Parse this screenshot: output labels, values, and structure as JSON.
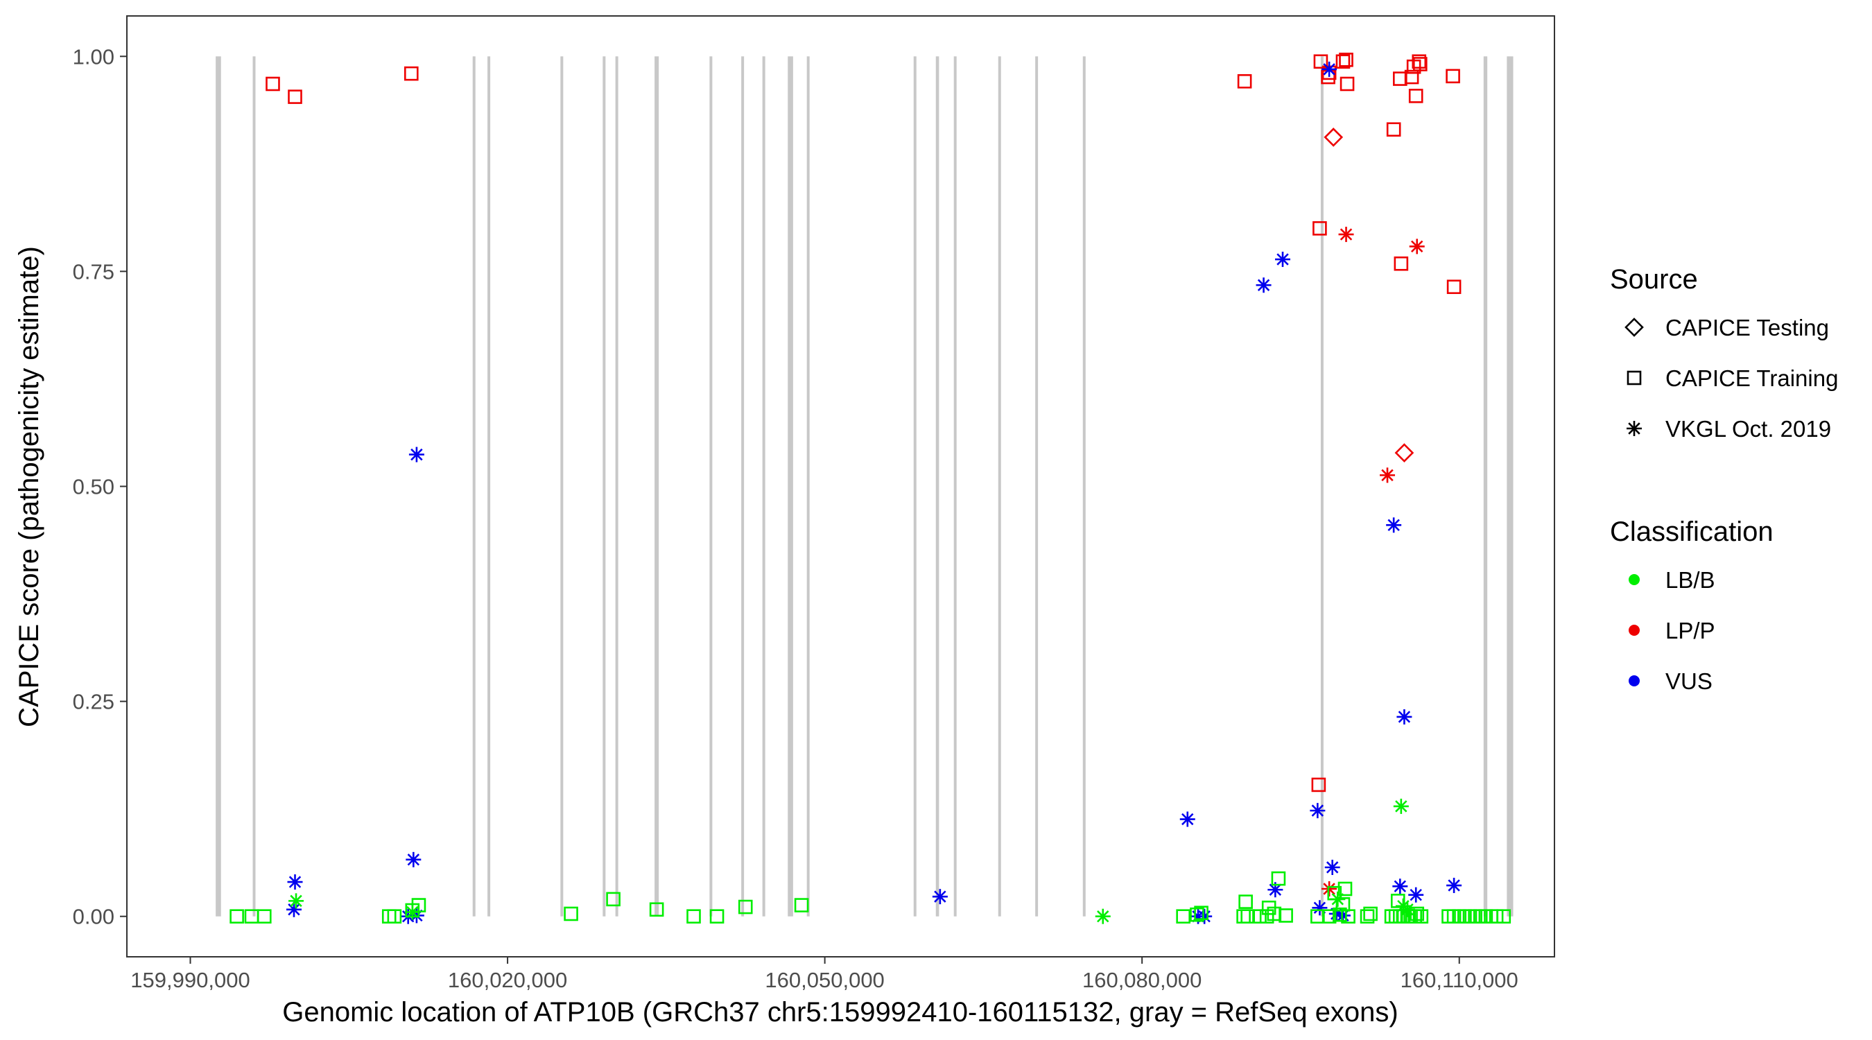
{
  "chart_data": {
    "type": "scatter",
    "title": "",
    "xlabel": "Genomic location of ATP10B (GRCh37 chr5:159992410-160115132, gray = RefSeq exons)",
    "ylabel": "CAPICE score (pathogenicity estimate)",
    "xlim": [
      159984000,
      160119000
    ],
    "ylim": [
      -0.047,
      1.047
    ],
    "x_ticks": [
      159990000,
      160020000,
      160050000,
      160080000,
      160110000
    ],
    "x_tick_labels": [
      "159,990,000",
      "160,020,000",
      "160,050,000",
      "160,080,000",
      "160,110,000"
    ],
    "y_ticks": [
      0,
      0.25,
      0.5,
      0.75,
      1.0
    ],
    "y_tick_labels": [
      "0.00",
      "0.25",
      "0.50",
      "0.75",
      "1.00"
    ],
    "grid": false,
    "exons": [
      {
        "start": 159992400,
        "end": 159992900
      },
      {
        "start": 159995900,
        "end": 159996100
      },
      {
        "start": 160016700,
        "end": 160016900
      },
      {
        "start": 160018100,
        "end": 160018250
      },
      {
        "start": 160025000,
        "end": 160025150
      },
      {
        "start": 160029000,
        "end": 160029150
      },
      {
        "start": 160030200,
        "end": 160030350
      },
      {
        "start": 160033900,
        "end": 160034300
      },
      {
        "start": 160039100,
        "end": 160039250
      },
      {
        "start": 160042100,
        "end": 160042250
      },
      {
        "start": 160044100,
        "end": 160044250
      },
      {
        "start": 160046500,
        "end": 160047000
      },
      {
        "start": 160048300,
        "end": 160048450
      },
      {
        "start": 160058400,
        "end": 160058550
      },
      {
        "start": 160060500,
        "end": 160060800
      },
      {
        "start": 160062200,
        "end": 160062350
      },
      {
        "start": 160066400,
        "end": 160066550
      },
      {
        "start": 160069900,
        "end": 160070050
      },
      {
        "start": 160074400,
        "end": 160074550
      },
      {
        "start": 160096900,
        "end": 160097050
      },
      {
        "start": 160112300,
        "end": 160112650
      },
      {
        "start": 160114500,
        "end": 160115100
      }
    ],
    "legend": {
      "position": "right",
      "source_title": "Source",
      "source_items": [
        {
          "label": "CAPICE Testing",
          "shape": "diamond"
        },
        {
          "label": "CAPICE Training",
          "shape": "square"
        },
        {
          "label": "VKGL Oct. 2019",
          "shape": "asterisk"
        }
      ],
      "class_title": "Classification",
      "class_items": [
        {
          "label": "LB/B",
          "color": "#00ee00"
        },
        {
          "label": "LP/P",
          "color": "#ee0000"
        },
        {
          "label": "VUS",
          "color": "#0000ee"
        }
      ]
    },
    "series": [
      {
        "name": "CAPICE Training LP/P",
        "shape": "square",
        "color": "#ee0000",
        "points": [
          [
            159997800,
            0.968
          ],
          [
            159999900,
            0.953
          ],
          [
            160010900,
            0.98
          ],
          [
            160089700,
            0.971
          ],
          [
            160096900,
            0.994
          ],
          [
            160097600,
            0.976
          ],
          [
            160097700,
            0.981
          ],
          [
            160099000,
            0.994
          ],
          [
            160099300,
            0.996
          ],
          [
            160099400,
            0.968
          ],
          [
            160103800,
            0.915
          ],
          [
            160104400,
            0.974
          ],
          [
            160105500,
            0.976
          ],
          [
            160105700,
            0.988
          ],
          [
            160105900,
            0.954
          ],
          [
            160106200,
            0.994
          ],
          [
            160106300,
            0.991
          ],
          [
            160109400,
            0.977
          ],
          [
            160096800,
            0.8
          ],
          [
            160104500,
            0.759
          ],
          [
            160109500,
            0.732
          ],
          [
            160096700,
            0.153
          ]
        ]
      },
      {
        "name": "CAPICE Testing LP/P",
        "shape": "diamond",
        "color": "#ee0000",
        "points": [
          [
            160098100,
            0.906
          ],
          [
            160104800,
            0.539
          ]
        ]
      },
      {
        "name": "VKGL Oct. 2019 LP/P",
        "shape": "asterisk",
        "color": "#ee0000",
        "points": [
          [
            160099300,
            0.793
          ],
          [
            160106000,
            0.779
          ],
          [
            160103200,
            0.513
          ],
          [
            160097700,
            0.032
          ]
        ]
      },
      {
        "name": "VKGL Oct. 2019 VUS",
        "shape": "asterisk",
        "color": "#0000ee",
        "points": [
          [
            160097700,
            0.985
          ],
          [
            160093300,
            0.764
          ],
          [
            160091500,
            0.734
          ],
          [
            160011400,
            0.537
          ],
          [
            160103800,
            0.455
          ],
          [
            160104800,
            0.232
          ],
          [
            160096600,
            0.123
          ],
          [
            160084300,
            0.113
          ],
          [
            160011100,
            0.066
          ],
          [
            160060900,
            0.023
          ],
          [
            159999900,
            0.04
          ],
          [
            159999800,
            0.008
          ],
          [
            160092600,
            0.031
          ],
          [
            160098000,
            0.057
          ],
          [
            160104400,
            0.035
          ],
          [
            160105900,
            0.025
          ],
          [
            160109500,
            0.036
          ],
          [
            160096800,
            0.01
          ],
          [
            160098400,
            0.003
          ],
          [
            160099000,
            0.001
          ],
          [
            160085300,
            0.0
          ],
          [
            160085900,
            0.0
          ],
          [
            160010600,
            0.0
          ],
          [
            160011400,
            0.001
          ]
        ]
      },
      {
        "name": "VKGL Oct. 2019 LB/B",
        "shape": "asterisk",
        "color": "#00ee00",
        "points": [
          [
            160104500,
            0.128
          ],
          [
            160076300,
            0.0
          ],
          [
            160000000,
            0.018
          ],
          [
            160011000,
            0.005
          ],
          [
            160104700,
            0.012
          ],
          [
            160105100,
            0.008
          ],
          [
            160098500,
            0.02
          ]
        ]
      },
      {
        "name": "CAPICE Training LB/B",
        "shape": "square",
        "color": "#00ee00",
        "points": [
          [
            159994400,
            0.0
          ],
          [
            159995800,
            0.0
          ],
          [
            159997000,
            0.0
          ],
          [
            160008800,
            0.0
          ],
          [
            160009300,
            0.0
          ],
          [
            160011000,
            0.007
          ],
          [
            160011600,
            0.013
          ],
          [
            160026000,
            0.003
          ],
          [
            160030000,
            0.02
          ],
          [
            160034100,
            0.008
          ],
          [
            160037600,
            0.0
          ],
          [
            160039800,
            0.0
          ],
          [
            160042500,
            0.011
          ],
          [
            160047800,
            0.013
          ],
          [
            160083900,
            0.0
          ],
          [
            160085200,
            0.002
          ],
          [
            160085600,
            0.004
          ],
          [
            160089600,
            0.0
          ],
          [
            160090000,
            0.0
          ],
          [
            160089800,
            0.017
          ],
          [
            160091100,
            0.0
          ],
          [
            160091800,
            0.0
          ],
          [
            160092000,
            0.01
          ],
          [
            160092500,
            0.003
          ],
          [
            160092900,
            0.044
          ],
          [
            160093600,
            0.001
          ],
          [
            160096600,
            0.0
          ],
          [
            160097700,
            0.0
          ],
          [
            160098200,
            0.027
          ],
          [
            160098700,
            0.002
          ],
          [
            160099000,
            0.014
          ],
          [
            160099200,
            0.032
          ],
          [
            160099500,
            0.0
          ],
          [
            160101300,
            0.0
          ],
          [
            160101600,
            0.003
          ],
          [
            160103600,
            0.0
          ],
          [
            160104000,
            0.0
          ],
          [
            160104200,
            0.018
          ],
          [
            160104400,
            0.0
          ],
          [
            160104700,
            0.0
          ],
          [
            160105100,
            0.0
          ],
          [
            160105400,
            0.0
          ],
          [
            160105800,
            0.0
          ],
          [
            160106000,
            0.003
          ],
          [
            160106400,
            0.0
          ],
          [
            160109000,
            0.0
          ],
          [
            160109500,
            0.0
          ],
          [
            160110000,
            0.0
          ],
          [
            160110500,
            0.0
          ],
          [
            160111000,
            0.0
          ],
          [
            160111500,
            0.0
          ],
          [
            160112000,
            0.0
          ],
          [
            160112500,
            0.0
          ],
          [
            160113000,
            0.0
          ],
          [
            160113500,
            0.0
          ],
          [
            160114200,
            0.0
          ]
        ]
      }
    ]
  }
}
